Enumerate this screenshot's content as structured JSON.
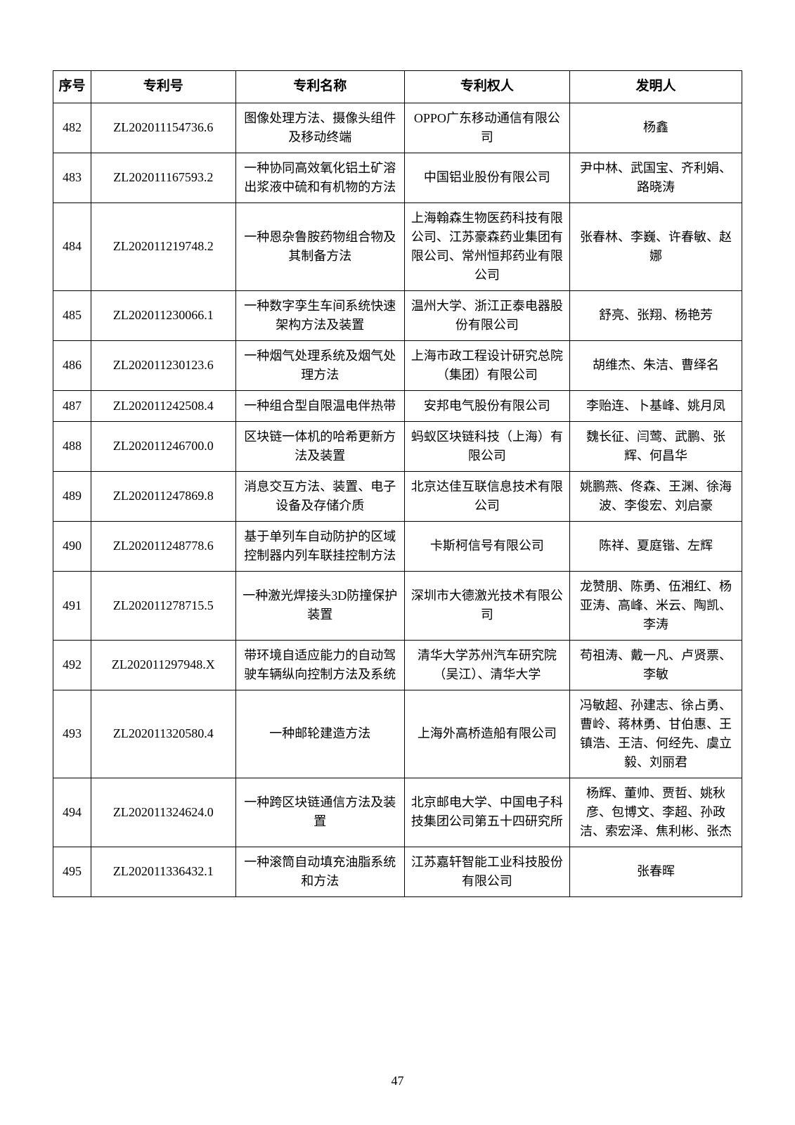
{
  "table": {
    "headers": {
      "seq": "序号",
      "patentNo": "专利号",
      "patentName": "专利名称",
      "patentee": "专利权人",
      "inventor": "发明人"
    },
    "rows": [
      {
        "seq": "482",
        "patentNo": "ZL202011154736.6",
        "patentName": "图像处理方法、摄像头组件及移动终端",
        "patentee": "OPPO广东移动通信有限公司",
        "inventor": "杨鑫"
      },
      {
        "seq": "483",
        "patentNo": "ZL202011167593.2",
        "patentName": "一种协同高效氧化铝土矿溶出浆液中硫和有机物的方法",
        "patentee": "中国铝业股份有限公司",
        "inventor": "尹中林、武国宝、齐利娟、路晓涛"
      },
      {
        "seq": "484",
        "patentNo": "ZL202011219748.2",
        "patentName": "一种恩杂鲁胺药物组合物及其制备方法",
        "patentee": "上海翰森生物医药科技有限公司、江苏豪森药业集团有限公司、常州恒邦药业有限公司",
        "inventor": "张春林、李巍、许春敏、赵娜"
      },
      {
        "seq": "485",
        "patentNo": "ZL202011230066.1",
        "patentName": "一种数字孪生车间系统快速架构方法及装置",
        "patentee": "温州大学、浙江正泰电器股份有限公司",
        "inventor": "舒亮、张翔、杨艳芳"
      },
      {
        "seq": "486",
        "patentNo": "ZL202011230123.6",
        "patentName": "一种烟气处理系统及烟气处理方法",
        "patentee": "上海市政工程设计研究总院（集团）有限公司",
        "inventor": "胡维杰、朱洁、曹绎名"
      },
      {
        "seq": "487",
        "patentNo": "ZL202011242508.4",
        "patentName": "一种组合型自限温电伴热带",
        "patentee": "安邦电气股份有限公司",
        "inventor": "李贻连、卜基峰、姚月凤"
      },
      {
        "seq": "488",
        "patentNo": "ZL202011246700.0",
        "patentName": "区块链一体机的哈希更新方法及装置",
        "patentee": "蚂蚁区块链科技（上海）有限公司",
        "inventor": "魏长征、闫莺、武鹏、张辉、何昌华"
      },
      {
        "seq": "489",
        "patentNo": "ZL202011247869.8",
        "patentName": "消息交互方法、装置、电子设备及存储介质",
        "patentee": "北京达佳互联信息技术有限公司",
        "inventor": "姚鹏燕、佟森、王渊、徐海波、李俊宏、刘启豪"
      },
      {
        "seq": "490",
        "patentNo": "ZL202011248778.6",
        "patentName": "基于单列车自动防护的区域控制器内列车联挂控制方法",
        "patentee": "卡斯柯信号有限公司",
        "inventor": "陈祥、夏庭锴、左辉"
      },
      {
        "seq": "491",
        "patentNo": "ZL202011278715.5",
        "patentName": "一种激光焊接头3D防撞保护装置",
        "patentee": "深圳市大德激光技术有限公司",
        "inventor": "龙赞朋、陈勇、伍湘红、杨亚涛、高峰、米云、陶凯、李涛"
      },
      {
        "seq": "492",
        "patentNo": "ZL202011297948.X",
        "patentName": "带环境自适应能力的自动驾驶车辆纵向控制方法及系统",
        "patentee": "清华大学苏州汽车研究院（吴江）、清华大学",
        "inventor": "苟祖涛、戴一凡、卢贤票、李敏"
      },
      {
        "seq": "493",
        "patentNo": "ZL202011320580.4",
        "patentName": "一种邮轮建造方法",
        "patentee": "上海外高桥造船有限公司",
        "inventor": "冯敏超、孙建志、徐占勇、曹岭、蒋林勇、甘伯惠、王镇浩、王洁、何经先、虞立毅、刘丽君"
      },
      {
        "seq": "494",
        "patentNo": "ZL202011324624.0",
        "patentName": "一种跨区块链通信方法及装置",
        "patentee": "北京邮电大学、中国电子科技集团公司第五十四研究所",
        "inventor": "杨辉、董帅、贾哲、姚秋彦、包博文、李超、孙政洁、索宏泽、焦利彬、张杰"
      },
      {
        "seq": "495",
        "patentNo": "ZL202011336432.1",
        "patentName": "一种滚筒自动填充油脂系统和方法",
        "patentee": "江苏嘉轩智能工业科技股份有限公司",
        "inventor": "张春晖"
      }
    ]
  },
  "pageNumber": "47"
}
